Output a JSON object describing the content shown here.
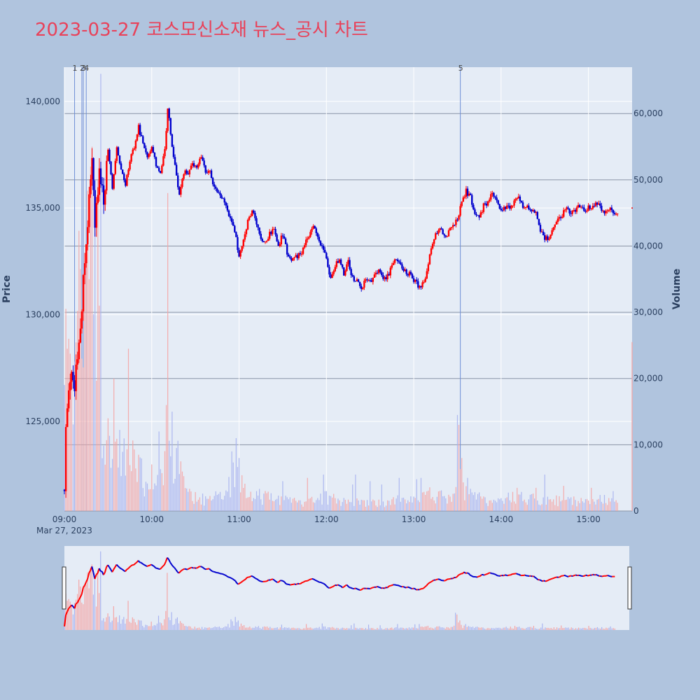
{
  "title": "2023-03-27 코스모신소재 뉴스_공시 차트",
  "colors": {
    "up": "#ff0000",
    "down": "#0000cd",
    "background": "#b0c4de",
    "plot": "#e5ecf6",
    "title": "#e8425a"
  },
  "chart_data": {
    "type": "candlestick",
    "xlabel": "",
    "ylabel": "Price",
    "y2label": "Volume",
    "x_ticks": [
      "09:00",
      "10:00",
      "11:00",
      "12:00",
      "13:00",
      "14:00",
      "15:00"
    ],
    "x_date_label": "Mar 27, 2023",
    "price_ticks": [
      "125,000",
      "130,000",
      "135,000",
      "140,000"
    ],
    "volume_ticks": [
      "0",
      "10,000",
      "20,000",
      "30,000",
      "40,000",
      "50,000",
      "60,000"
    ],
    "price_range": [
      120800,
      141600
    ],
    "volume_range": [
      0,
      67000
    ],
    "events": [
      {
        "label": "1",
        "time": "09:07"
      },
      {
        "label": "2",
        "time": "09:12"
      },
      {
        "label": "3",
        "time": "09:13"
      },
      {
        "label": "4",
        "time": "09:15"
      },
      {
        "label": "5",
        "time": "13:32"
      }
    ],
    "price_path": [
      [
        "09:00",
        121800
      ],
      [
        "09:01",
        124500
      ],
      [
        "09:03",
        126200
      ],
      [
        "09:05",
        127000
      ],
      [
        "09:07",
        126500
      ],
      [
        "09:09",
        128000
      ],
      [
        "09:11",
        129500
      ],
      [
        "09:13",
        131500
      ],
      [
        "09:15",
        133500
      ],
      [
        "09:17",
        135500
      ],
      [
        "09:19",
        137500
      ],
      [
        "09:21",
        134500
      ],
      [
        "09:24",
        136500
      ],
      [
        "09:27",
        135500
      ],
      [
        "09:30",
        137800
      ],
      [
        "09:33",
        135800
      ],
      [
        "09:36",
        137800
      ],
      [
        "09:39",
        136800
      ],
      [
        "09:42",
        136000
      ],
      [
        "09:45",
        137300
      ],
      [
        "09:48",
        137800
      ],
      [
        "09:51",
        138800
      ],
      [
        "09:54",
        138000
      ],
      [
        "09:57",
        137300
      ],
      [
        "10:00",
        137800
      ],
      [
        "10:03",
        137000
      ],
      [
        "10:06",
        136700
      ],
      [
        "10:09",
        137700
      ],
      [
        "10:11",
        139700
      ],
      [
        "10:13",
        138500
      ],
      [
        "10:16",
        137000
      ],
      [
        "10:19",
        135600
      ],
      [
        "10:22",
        136700
      ],
      [
        "10:25",
        136700
      ],
      [
        "10:28",
        137000
      ],
      [
        "10:31",
        136800
      ],
      [
        "10:34",
        137400
      ],
      [
        "10:37",
        136600
      ],
      [
        "10:40",
        136700
      ],
      [
        "10:43",
        136000
      ],
      [
        "10:46",
        135700
      ],
      [
        "10:49",
        135400
      ],
      [
        "10:52",
        134900
      ],
      [
        "10:55",
        134300
      ],
      [
        "10:58",
        133600
      ],
      [
        "11:00",
        132700
      ],
      [
        "11:03",
        133400
      ],
      [
        "11:06",
        134400
      ],
      [
        "11:09",
        134900
      ],
      [
        "11:12",
        134300
      ],
      [
        "11:15",
        133600
      ],
      [
        "11:18",
        133400
      ],
      [
        "11:21",
        133800
      ],
      [
        "11:24",
        134000
      ],
      [
        "11:27",
        133200
      ],
      [
        "11:30",
        133800
      ],
      [
        "11:33",
        132900
      ],
      [
        "11:36",
        132500
      ],
      [
        "11:39",
        132700
      ],
      [
        "11:42",
        132800
      ],
      [
        "11:45",
        133300
      ],
      [
        "11:48",
        133700
      ],
      [
        "11:51",
        134200
      ],
      [
        "11:54",
        133600
      ],
      [
        "11:57",
        133200
      ],
      [
        "12:00",
        132600
      ],
      [
        "12:03",
        131700
      ],
      [
        "12:06",
        132300
      ],
      [
        "12:09",
        132600
      ],
      [
        "12:12",
        131900
      ],
      [
        "12:15",
        132500
      ],
      [
        "12:18",
        131700
      ],
      [
        "12:21",
        131600
      ],
      [
        "12:24",
        131100
      ],
      [
        "12:27",
        131700
      ],
      [
        "12:30",
        131600
      ],
      [
        "12:33",
        131800
      ],
      [
        "12:36",
        132000
      ],
      [
        "12:39",
        131700
      ],
      [
        "12:42",
        131800
      ],
      [
        "12:45",
        132300
      ],
      [
        "12:48",
        132600
      ],
      [
        "12:51",
        132300
      ],
      [
        "12:54",
        132000
      ],
      [
        "12:57",
        131900
      ],
      [
        "13:00",
        131600
      ],
      [
        "13:03",
        131400
      ],
      [
        "13:06",
        131400
      ],
      [
        "13:09",
        132000
      ],
      [
        "13:12",
        133200
      ],
      [
        "13:15",
        133800
      ],
      [
        "13:18",
        134100
      ],
      [
        "13:21",
        133600
      ],
      [
        "13:24",
        133900
      ],
      [
        "13:27",
        134100
      ],
      [
        "13:30",
        134500
      ],
      [
        "13:33",
        135300
      ],
      [
        "13:36",
        135800
      ],
      [
        "13:39",
        135500
      ],
      [
        "13:42",
        134700
      ],
      [
        "13:45",
        134500
      ],
      [
        "13:48",
        135100
      ],
      [
        "13:51",
        135300
      ],
      [
        "13:54",
        135700
      ],
      [
        "13:57",
        135300
      ],
      [
        "14:00",
        134900
      ],
      [
        "14:03",
        135000
      ],
      [
        "14:06",
        135100
      ],
      [
        "14:09",
        135300
      ],
      [
        "14:12",
        135500
      ],
      [
        "14:15",
        135100
      ],
      [
        "14:18",
        135100
      ],
      [
        "14:21",
        134900
      ],
      [
        "14:24",
        134700
      ],
      [
        "14:27",
        134000
      ],
      [
        "14:30",
        133600
      ],
      [
        "14:33",
        133500
      ],
      [
        "14:36",
        134100
      ],
      [
        "14:39",
        134400
      ],
      [
        "14:42",
        134700
      ],
      [
        "14:45",
        135000
      ],
      [
        "14:48",
        134800
      ],
      [
        "14:51",
        134900
      ],
      [
        "14:54",
        135100
      ],
      [
        "14:57",
        134800
      ],
      [
        "15:00",
        135000
      ],
      [
        "15:03",
        135100
      ],
      [
        "15:06",
        135200
      ],
      [
        "15:09",
        135000
      ],
      [
        "15:12",
        134800
      ],
      [
        "15:15",
        134900
      ],
      [
        "15:18",
        134800
      ],
      [
        "15:20",
        134800
      ]
    ],
    "closing_print": [
      "15:30",
      135000,
      25500
    ],
    "volume_profile": [
      [
        "09:00",
        24000
      ],
      [
        "09:02",
        26000
      ],
      [
        "09:05",
        20000
      ],
      [
        "09:08",
        30000
      ],
      [
        "09:10",
        35000
      ],
      [
        "09:12",
        45000
      ],
      [
        "09:14",
        35000
      ],
      [
        "09:16",
        50000
      ],
      [
        "09:18",
        40000
      ],
      [
        "09:20",
        25000
      ],
      [
        "09:22",
        30000
      ],
      [
        "09:24",
        20000
      ],
      [
        "09:26",
        17000
      ],
      [
        "09:28",
        15000
      ],
      [
        "09:30",
        14000
      ],
      [
        "09:33",
        11000
      ],
      [
        "09:36",
        9000
      ],
      [
        "09:39",
        11000
      ],
      [
        "09:42",
        13000
      ],
      [
        "09:45",
        11000
      ],
      [
        "09:48",
        8000
      ],
      [
        "09:52",
        7000
      ],
      [
        "09:56",
        5000
      ],
      [
        "10:00",
        6000
      ],
      [
        "10:04",
        5000
      ],
      [
        "10:08",
        7000
      ],
      [
        "10:10",
        14000
      ],
      [
        "10:12",
        12000
      ],
      [
        "10:15",
        10000
      ],
      [
        "10:18",
        9000
      ],
      [
        "10:21",
        6000
      ],
      [
        "10:25",
        3000
      ],
      [
        "10:30",
        2500
      ],
      [
        "10:40",
        2000
      ],
      [
        "10:50",
        3000
      ],
      [
        "10:56",
        6000
      ],
      [
        "11:00",
        7000
      ],
      [
        "11:05",
        4000
      ],
      [
        "11:10",
        3000
      ],
      [
        "11:20",
        2500
      ],
      [
        "11:30",
        2000
      ],
      [
        "11:40",
        1500
      ],
      [
        "11:50",
        2000
      ],
      [
        "12:00",
        2500
      ],
      [
        "12:10",
        1800
      ],
      [
        "12:20",
        2200
      ],
      [
        "12:30",
        1500
      ],
      [
        "12:40",
        1500
      ],
      [
        "12:50",
        2000
      ],
      [
        "13:00",
        2000
      ],
      [
        "13:10",
        3000
      ],
      [
        "13:20",
        2500
      ],
      [
        "13:28",
        3000
      ],
      [
        "13:30",
        5000
      ],
      [
        "13:32",
        9000
      ],
      [
        "13:34",
        4000
      ],
      [
        "13:40",
        2500
      ],
      [
        "13:50",
        2000
      ],
      [
        "14:00",
        2000
      ],
      [
        "14:10",
        2500
      ],
      [
        "14:20",
        2200
      ],
      [
        "14:30",
        2000
      ],
      [
        "14:40",
        2000
      ],
      [
        "14:50",
        1800
      ],
      [
        "15:00",
        1800
      ],
      [
        "15:10",
        2000
      ],
      [
        "15:18",
        2200
      ]
    ],
    "volume_spikes": [
      [
        "09:02",
        24500
      ],
      [
        "09:03",
        26000
      ],
      [
        "09:12",
        23000
      ],
      [
        "09:15",
        38000
      ],
      [
        "09:17",
        35000
      ],
      [
        "09:18",
        52000
      ],
      [
        "09:19",
        55000
      ],
      [
        "09:21",
        42000
      ],
      [
        "09:23",
        50000
      ],
      [
        "09:24",
        31000
      ],
      [
        "09:25",
        66000
      ],
      [
        "09:30",
        14000
      ],
      [
        "09:34",
        20000
      ],
      [
        "09:44",
        24500
      ],
      [
        "10:05",
        12000
      ],
      [
        "10:10",
        16000
      ],
      [
        "10:11",
        48000
      ],
      [
        "10:14",
        15000
      ],
      [
        "10:55",
        9000
      ],
      [
        "10:58",
        11000
      ],
      [
        "11:00",
        8000
      ],
      [
        "11:30",
        4500
      ],
      [
        "11:47",
        5000
      ],
      [
        "11:58",
        5500
      ],
      [
        "12:00",
        3000
      ],
      [
        "12:18",
        4000
      ],
      [
        "12:20",
        5500
      ],
      [
        "12:30",
        4500
      ],
      [
        "12:38",
        4000
      ],
      [
        "12:50",
        5000
      ],
      [
        "13:02",
        4800
      ],
      [
        "13:05",
        5000
      ],
      [
        "13:30",
        14500
      ],
      [
        "13:31",
        13000
      ],
      [
        "13:33",
        8000
      ],
      [
        "13:37",
        5000
      ],
      [
        "14:11",
        3500
      ],
      [
        "14:24",
        3500
      ],
      [
        "14:30",
        5500
      ],
      [
        "14:43",
        3800
      ],
      [
        "15:02",
        3500
      ],
      [
        "15:17",
        3000
      ]
    ]
  }
}
